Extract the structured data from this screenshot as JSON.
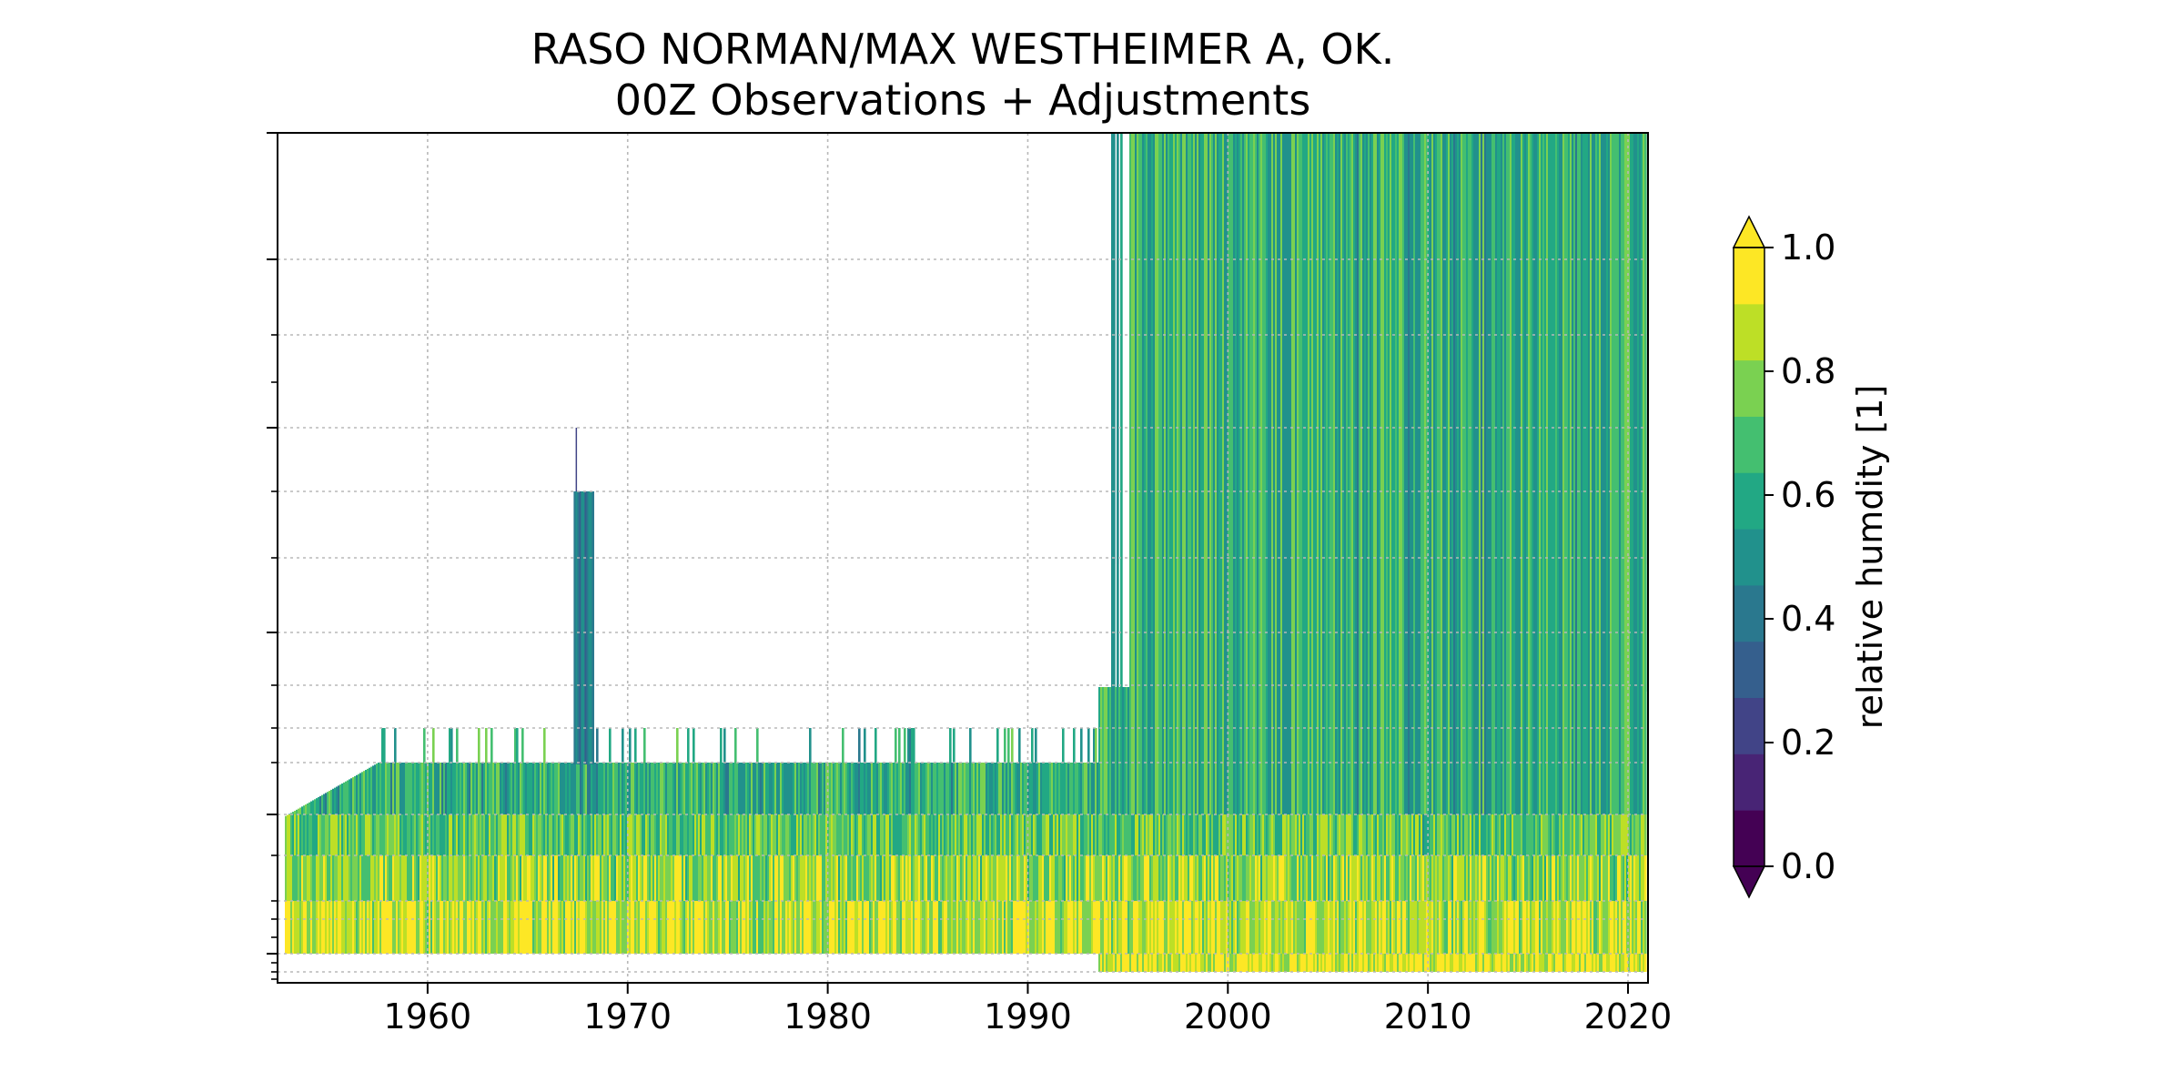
{
  "chart_data": {
    "type": "heatmap",
    "title": "RASO NORMAN/MAX WESTHEIMER A, OK.",
    "subtitle": "00Z Observations + Adjustments",
    "xlabel": "",
    "ylabel": "",
    "xlim": [
      1952.5,
      2021
    ],
    "x_ticks": [
      1960,
      1970,
      1980,
      1990,
      2000,
      2010,
      2020
    ],
    "x_tick_labels": [
      "1960",
      "1970",
      "1980",
      "1990",
      "2000",
      "2010",
      "2020"
    ],
    "y_tick_labels_visible": false,
    "grid": true,
    "colormap": "viridis",
    "colorbar": {
      "label": "relative humdity [1]",
      "range": [
        0.0,
        1.0
      ],
      "ticks": [
        0.0,
        0.2,
        0.4,
        0.6,
        0.8,
        1.0
      ],
      "tick_labels": [
        "0.0",
        "0.2",
        "0.4",
        "0.6",
        "0.8",
        "1.0"
      ],
      "levels": 12,
      "extend": "both",
      "colors": [
        "#440154",
        "#482475",
        "#414487",
        "#355f8d",
        "#2a788e",
        "#21918c",
        "#22a884",
        "#44bf70",
        "#7ad151",
        "#bddf26",
        "#fde725"
      ]
    }
  }
}
